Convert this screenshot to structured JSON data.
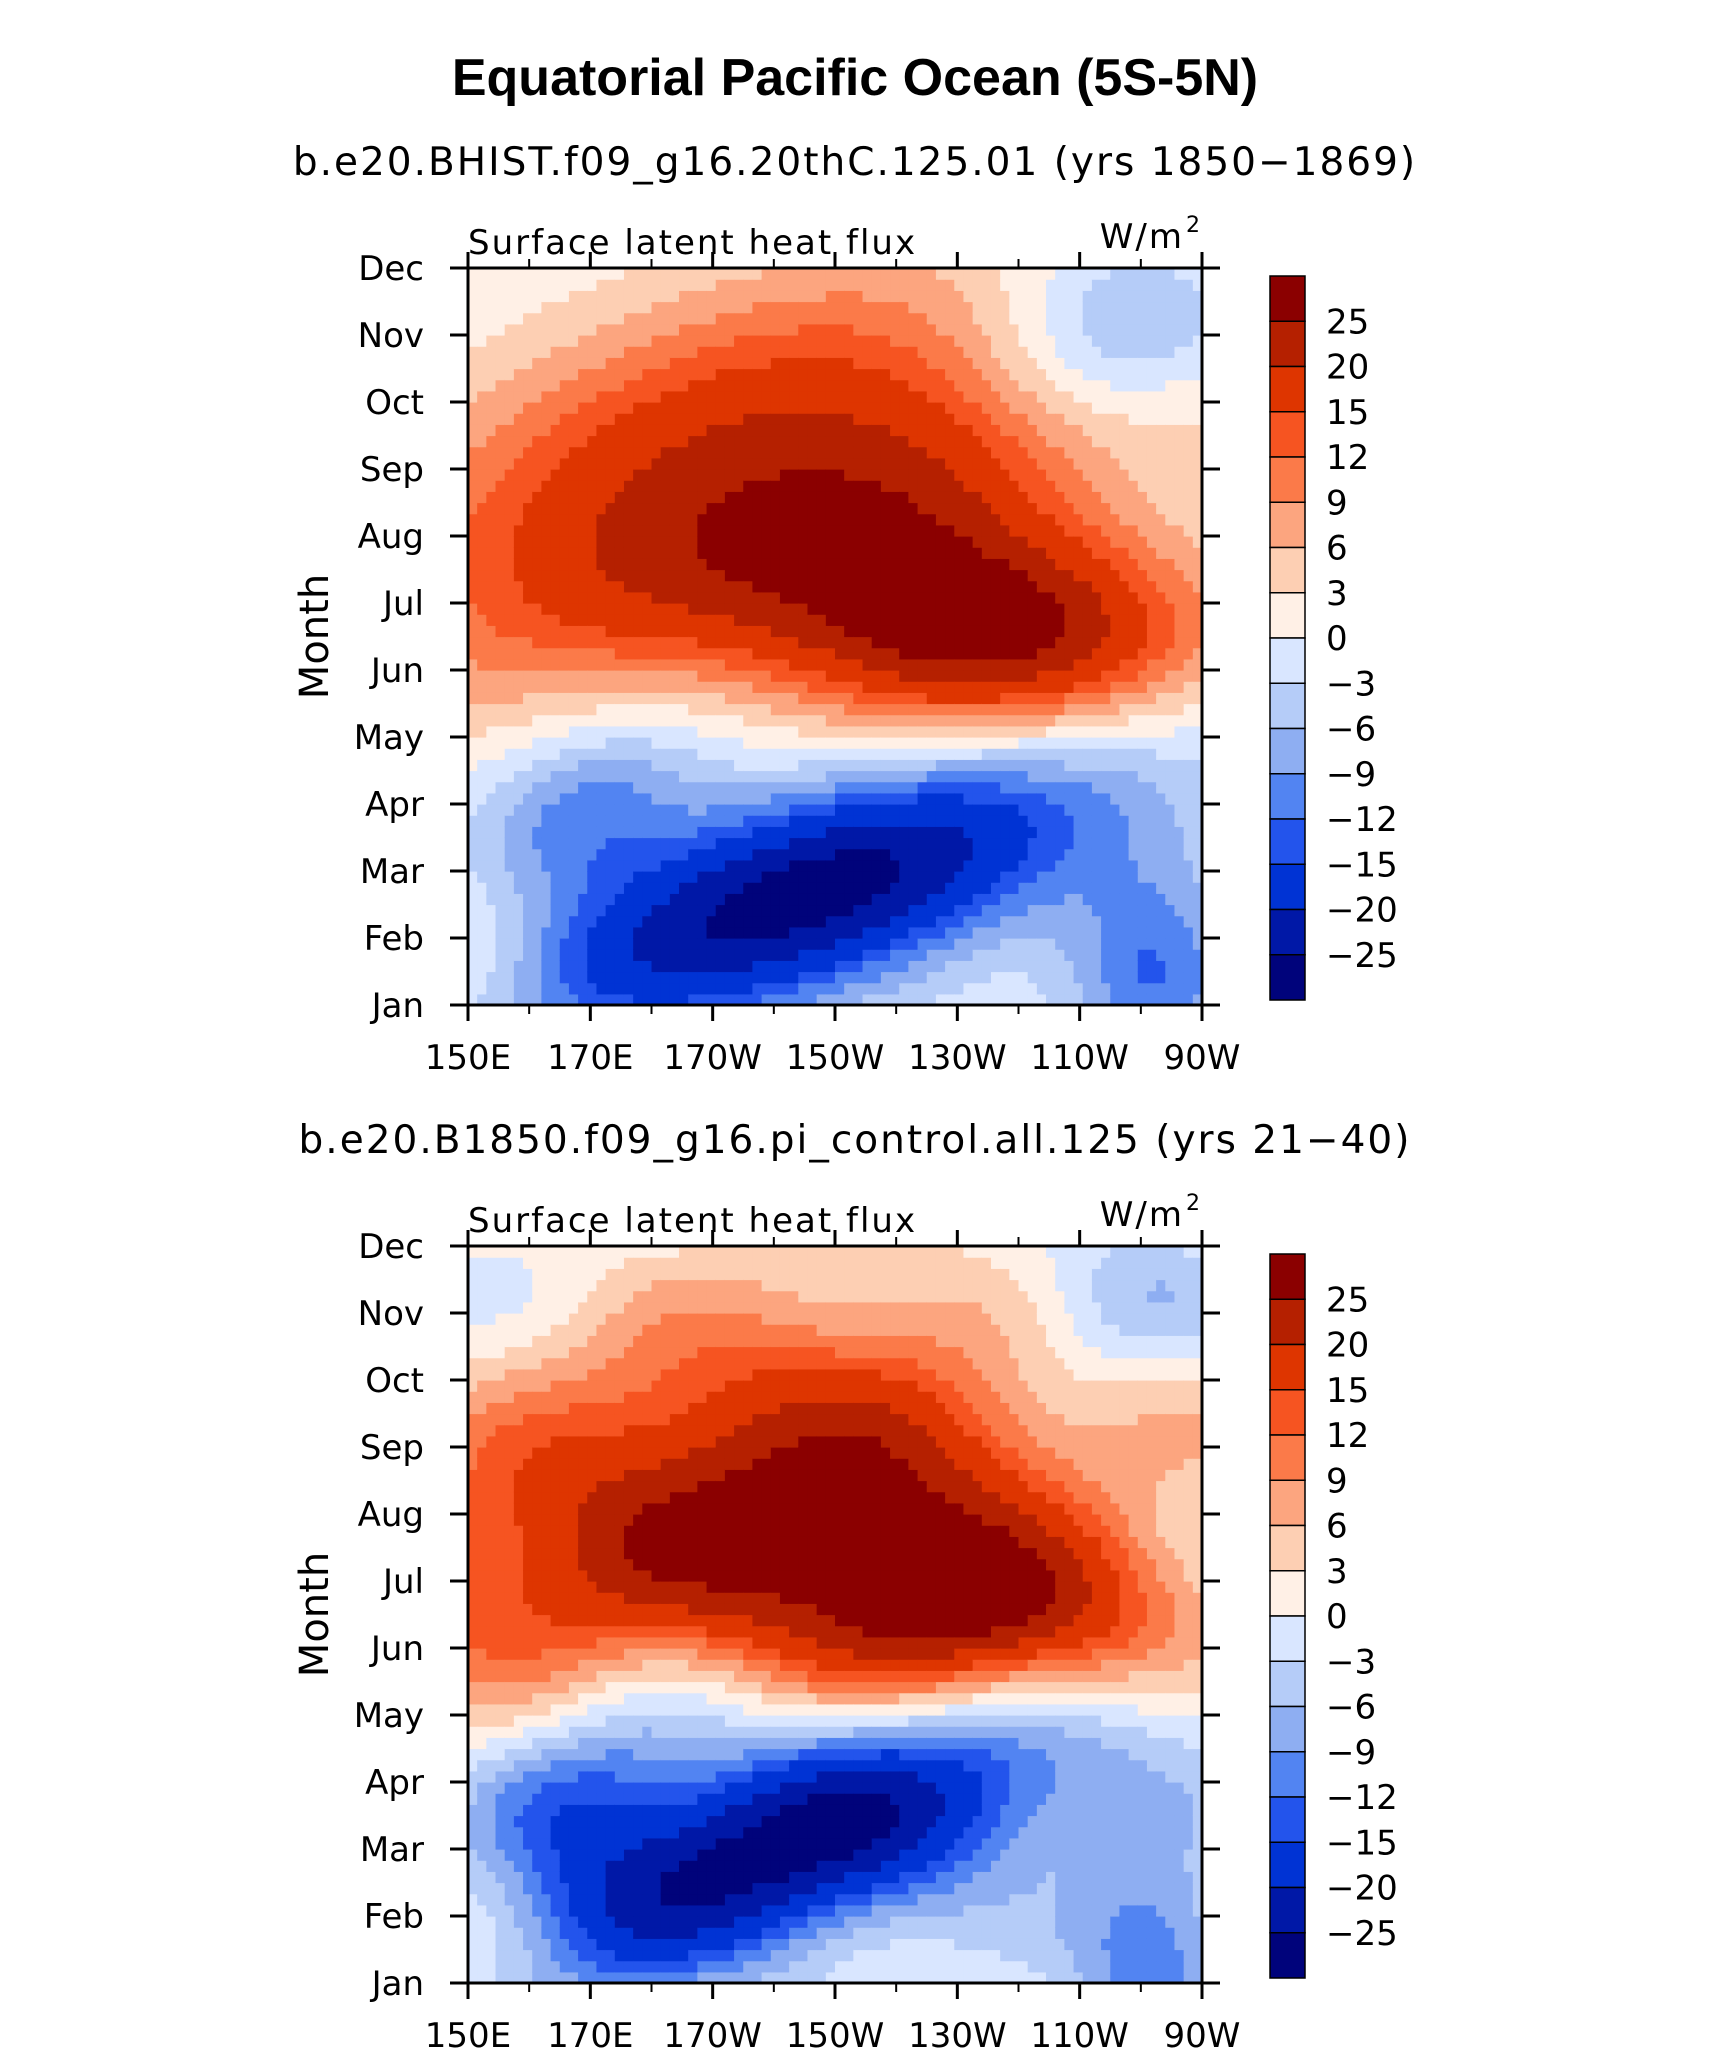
{
  "main_title": "Equatorial Pacific Ocean (5S-5N)",
  "chart_data": [
    {
      "type": "heatmap",
      "subtitle": "b.e20.BHIST.f09_g16.20thC.125.01 (yrs 1850−1869)",
      "variable": "Surface latent heat flux",
      "units_base": "W/m",
      "units_exp": "2",
      "ylabel": "Month",
      "x_ticks": [
        "150E",
        "170E",
        "170W",
        "150W",
        "130W",
        "110W",
        "90W"
      ],
      "y_ticks": [
        "Jan",
        "Feb",
        "Mar",
        "Apr",
        "May",
        "Jun",
        "Jul",
        "Aug",
        "Sep",
        "Oct",
        "Nov",
        "Dec"
      ],
      "xlim_deg_east": [
        150,
        270
      ],
      "colorbar_levels": [
        "25",
        "20",
        "15",
        "12",
        "9",
        "6",
        "3",
        "0",
        "−3",
        "−6",
        "−9",
        "−12",
        "−15",
        "−20",
        "−25"
      ],
      "colorbar_colors": [
        "#8b0000",
        "#b52000",
        "#de3500",
        "#f65421",
        "#fb7a49",
        "#fca57f",
        "#fdcfb3",
        "#fff0e6",
        "#d9e6ff",
        "#b5ccf8",
        "#8eaef2",
        "#5284f2",
        "#2354ec",
        "#0033d4",
        "#0018a7",
        "#00037b"
      ],
      "pattern": {
        "description_free": true,
        "warm_peak": {
          "lon": 235,
          "month": 6.6,
          "value": 28
        },
        "cold_peak": {
          "lon": 205,
          "month": 2.5,
          "value": -28
        },
        "warm_fall_peak": {
          "lon": 190,
          "month": 9.6,
          "value": 18
        },
        "offshore_cool": {
          "lon": 250,
          "month": 10.3,
          "value": -8
        }
      }
    },
    {
      "type": "heatmap",
      "subtitle": "b.e20.B1850.f09_g16.pi_control.all.125 (yrs 21−40)",
      "variable": "Surface latent heat flux",
      "units_base": "W/m",
      "units_exp": "2",
      "ylabel": "Month",
      "x_ticks": [
        "150E",
        "170E",
        "170W",
        "150W",
        "130W",
        "110W",
        "90W"
      ],
      "y_ticks": [
        "Jan",
        "Feb",
        "Mar",
        "Apr",
        "May",
        "Jun",
        "Jul",
        "Aug",
        "Sep",
        "Oct",
        "Nov",
        "Dec"
      ],
      "xlim_deg_east": [
        150,
        270
      ],
      "colorbar_levels": [
        "25",
        "20",
        "15",
        "12",
        "9",
        "6",
        "3",
        "0",
        "−3",
        "−6",
        "−9",
        "−12",
        "−15",
        "−20",
        "−25"
      ],
      "colorbar_colors": [
        "#8b0000",
        "#b52000",
        "#de3500",
        "#f65421",
        "#fb7a49",
        "#fca57f",
        "#fdcfb3",
        "#fff0e6",
        "#d9e6ff",
        "#b5ccf8",
        "#8eaef2",
        "#5284f2",
        "#2354ec",
        "#0033d4",
        "#0018a7",
        "#00037b"
      ],
      "pattern": {
        "warm_peak": {
          "lon": 232,
          "month": 6.6,
          "value": 28
        },
        "cold_peak": {
          "lon": 202,
          "month": 3.0,
          "value": -28
        },
        "warm_fall_peak": {
          "lon": 185,
          "month": 9.2,
          "value": 17
        },
        "offshore_cool": {
          "lon": 248,
          "month": 10.0,
          "value": -7
        }
      }
    }
  ]
}
